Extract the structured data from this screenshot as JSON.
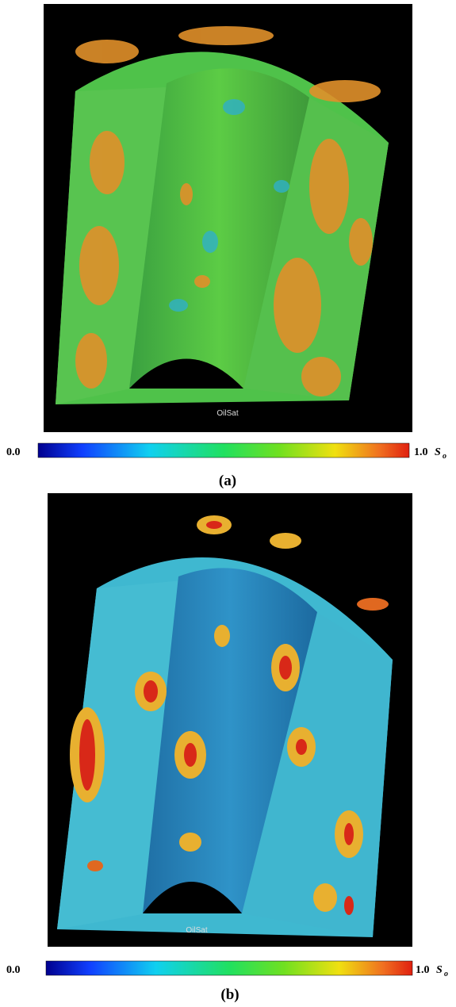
{
  "panels": [
    {
      "render_label": "OilSat",
      "colorbar": {
        "min_label": "0.0",
        "max_label": "1.0",
        "symbol": "S",
        "subscript": "o"
      },
      "caption": "(a)"
    },
    {
      "render_label": "OilSat",
      "colorbar": {
        "min_label": "0.0",
        "max_label": "1.0",
        "symbol": "S",
        "subscript": "o"
      },
      "caption": "(b)"
    }
  ]
}
